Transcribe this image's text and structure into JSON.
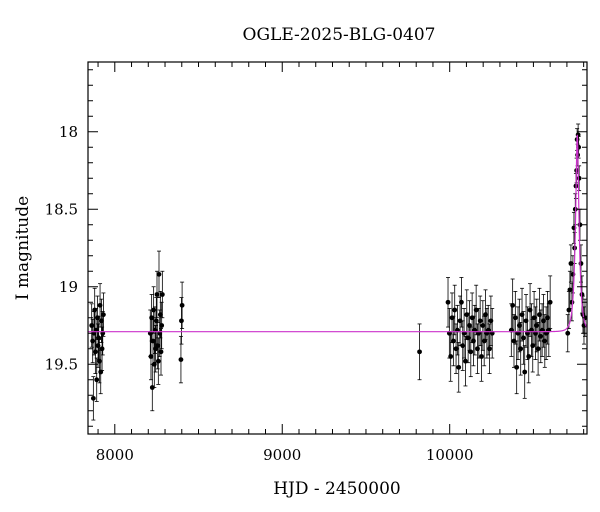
{
  "chart_data": {
    "type": "scatter",
    "title": "OGLE-2025-BLG-0407",
    "xlabel": "HJD - 2450000",
    "ylabel": "I magnitude",
    "xlim": [
      7840,
      10820
    ],
    "ylim": [
      19.95,
      17.55
    ],
    "y_inverted": true,
    "x_ticks": [
      8000,
      9000,
      10000
    ],
    "y_ticks": [
      18,
      18.5,
      19,
      19.5
    ],
    "grid": false,
    "colors": {
      "points": "#000000",
      "model": "#cc33cc"
    },
    "model": {
      "baseline": 19.29,
      "peak_t": 10762,
      "peak_mag": 18.02,
      "tE": 22
    },
    "series": [
      {
        "x": [
          7862,
          7868,
          7872,
          7876,
          7880,
          7884,
          7888,
          7892,
          7896,
          7900,
          7904,
          7908,
          7912,
          7916,
          7920,
          7924,
          7928,
          7932,
          8212,
          8216,
          8220,
          8224,
          8228,
          8232,
          8236,
          8240,
          8244,
          8248,
          8252,
          8256,
          8260,
          8264,
          8268,
          8272,
          8276,
          8280,
          8284,
          8395,
          8398,
          8402,
          9820,
          9990,
          9998,
          10006,
          10014,
          10022,
          10030,
          10038,
          10046,
          10054,
          10062,
          10070,
          10078,
          10086,
          10094,
          10102,
          10110,
          10118,
          10126,
          10134,
          10142,
          10150,
          10158,
          10166,
          10174,
          10182,
          10190,
          10198,
          10206,
          10214,
          10222,
          10230,
          10238,
          10246,
          10254,
          10368,
          10376,
          10384,
          10392,
          10400,
          10408,
          10416,
          10424,
          10432,
          10440,
          10448,
          10456,
          10464,
          10472,
          10480,
          10488,
          10496,
          10504,
          10512,
          10520,
          10528,
          10536,
          10544,
          10552,
          10560,
          10568,
          10576,
          10584,
          10592,
          10600,
          10705,
          10712,
          10718,
          10724,
          10730,
          10736,
          10742,
          10746,
          10750,
          10754,
          10758,
          10761,
          10764,
          10767,
          10770,
          10773,
          10778,
          10784,
          10790,
          10796,
          10802,
          10808
        ],
        "y": [
          19.25,
          19.35,
          19.72,
          19.3,
          19.15,
          19.42,
          19.28,
          19.6,
          19.2,
          19.38,
          19.33,
          19.48,
          19.12,
          19.55,
          19.22,
          19.4,
          19.3,
          19.18,
          19.3,
          19.45,
          19.2,
          19.65,
          19.35,
          19.15,
          19.5,
          19.28,
          19.4,
          19.22,
          19.05,
          19.38,
          19.48,
          18.92,
          19.3,
          19.18,
          19.42,
          19.25,
          19.05,
          19.47,
          19.22,
          19.12,
          19.42,
          19.1,
          19.3,
          19.45,
          19.2,
          19.35,
          19.15,
          19.4,
          19.28,
          19.52,
          19.22,
          19.1,
          19.38,
          19.3,
          19.48,
          19.18,
          19.33,
          19.25,
          19.42,
          19.2,
          19.35,
          19.28,
          19.15,
          19.4,
          19.3,
          19.22,
          19.45,
          19.25,
          19.35,
          19.18,
          19.3,
          19.28,
          19.4,
          19.22,
          19.3,
          19.28,
          19.12,
          19.35,
          19.2,
          19.52,
          19.3,
          19.25,
          19.4,
          19.18,
          19.33,
          19.55,
          19.22,
          19.3,
          19.45,
          19.15,
          19.28,
          19.38,
          19.2,
          19.3,
          19.25,
          19.4,
          19.18,
          19.32,
          19.28,
          19.22,
          19.35,
          19.3,
          19.2,
          19.28,
          19.1,
          19.3,
          19.15,
          19.02,
          18.85,
          19.1,
          18.92,
          18.62,
          18.75,
          18.5,
          18.35,
          18.25,
          18.05,
          18.15,
          18.02,
          18.1,
          18.3,
          18.6,
          18.85,
          19.05,
          19.18,
          19.25,
          19.2
        ],
        "err": [
          0.14,
          0.14,
          0.14,
          0.14,
          0.14,
          0.14,
          0.14,
          0.14,
          0.14,
          0.14,
          0.14,
          0.14,
          0.14,
          0.14,
          0.14,
          0.14,
          0.14,
          0.14,
          0.15,
          0.15,
          0.15,
          0.15,
          0.15,
          0.15,
          0.15,
          0.15,
          0.15,
          0.15,
          0.15,
          0.15,
          0.15,
          0.15,
          0.15,
          0.15,
          0.15,
          0.15,
          0.15,
          0.15,
          0.15,
          0.15,
          0.18,
          0.16,
          0.16,
          0.16,
          0.16,
          0.16,
          0.16,
          0.16,
          0.16,
          0.16,
          0.16,
          0.16,
          0.16,
          0.16,
          0.16,
          0.16,
          0.16,
          0.16,
          0.16,
          0.16,
          0.16,
          0.16,
          0.16,
          0.16,
          0.16,
          0.16,
          0.16,
          0.16,
          0.16,
          0.16,
          0.16,
          0.16,
          0.16,
          0.16,
          0.16,
          0.17,
          0.17,
          0.17,
          0.17,
          0.17,
          0.17,
          0.17,
          0.17,
          0.17,
          0.17,
          0.17,
          0.17,
          0.17,
          0.17,
          0.17,
          0.17,
          0.17,
          0.17,
          0.17,
          0.17,
          0.17,
          0.17,
          0.17,
          0.17,
          0.17,
          0.17,
          0.17,
          0.17,
          0.17,
          0.17,
          0.12,
          0.12,
          0.12,
          0.12,
          0.12,
          0.12,
          0.1,
          0.1,
          0.1,
          0.08,
          0.08,
          0.07,
          0.07,
          0.07,
          0.07,
          0.08,
          0.1,
          0.12,
          0.12,
          0.12,
          0.12,
          0.12
        ]
      }
    ]
  }
}
